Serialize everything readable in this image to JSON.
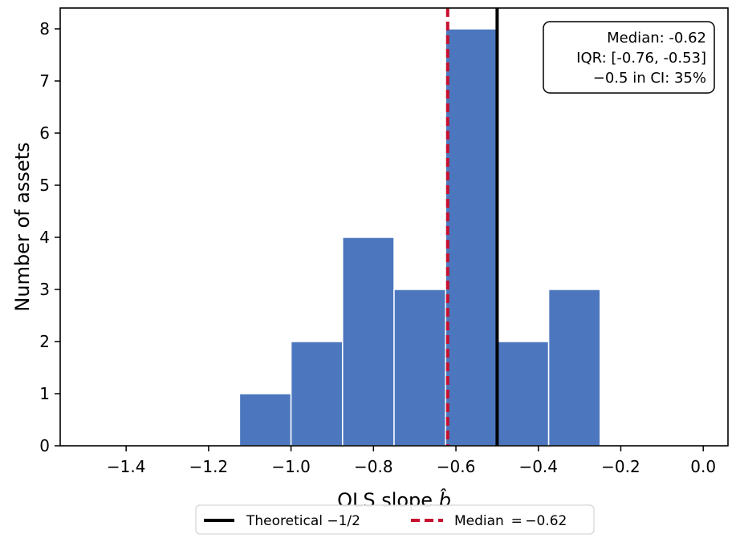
{
  "chart_data": {
    "type": "bar",
    "subtype": "histogram",
    "xlabel": "OLS slope b̂",
    "xlabel_main": "OLS slope ",
    "xlabel_symbol": "b̂",
    "ylabel": "Number of assets",
    "xlim": [
      -1.56,
      0.06
    ],
    "ylim": [
      0,
      8.4
    ],
    "x_ticks": [
      -1.4,
      -1.2,
      -1.0,
      -0.8,
      -0.6,
      -0.4,
      -0.2,
      0.0
    ],
    "x_tick_labels": [
      "−1.4",
      "−1.2",
      "−1.0",
      "−0.8",
      "−0.6",
      "−0.4",
      "−0.2",
      "0.0"
    ],
    "y_ticks": [
      0,
      1,
      2,
      3,
      4,
      5,
      6,
      7,
      8
    ],
    "y_tick_labels": [
      "0",
      "1",
      "2",
      "3",
      "4",
      "5",
      "6",
      "7",
      "8"
    ],
    "bins": [
      {
        "x0": -1.125,
        "x1": -1.0,
        "count": 1
      },
      {
        "x0": -1.0,
        "x1": -0.875,
        "count": 2
      },
      {
        "x0": -0.875,
        "x1": -0.75,
        "count": 4
      },
      {
        "x0": -0.75,
        "x1": -0.625,
        "count": 3
      },
      {
        "x0": -0.625,
        "x1": -0.5,
        "count": 8
      },
      {
        "x0": -0.5,
        "x1": -0.375,
        "count": 2
      },
      {
        "x0": -0.375,
        "x1": -0.25,
        "count": 3
      }
    ],
    "bar_color": "#4c77be",
    "bar_edge_color": "#ffffff",
    "reference_lines": [
      {
        "name": "Theoretical −1/2",
        "x": -0.5,
        "color": "#000000",
        "style": "solid"
      },
      {
        "name": "Median = −0.62",
        "x": -0.62,
        "color": "#c8102e",
        "style": "dashed"
      }
    ],
    "stats_box": {
      "lines": [
        "Median: -0.62",
        "IQR: [-0.76, -0.53]",
        "−0.5 in CI: 35%"
      ],
      "placement": "top-right"
    },
    "legend": {
      "placement": "bottom-center",
      "entries": [
        "Theoretical −1/2",
        "Median  = −0.62"
      ]
    },
    "grid": false
  }
}
